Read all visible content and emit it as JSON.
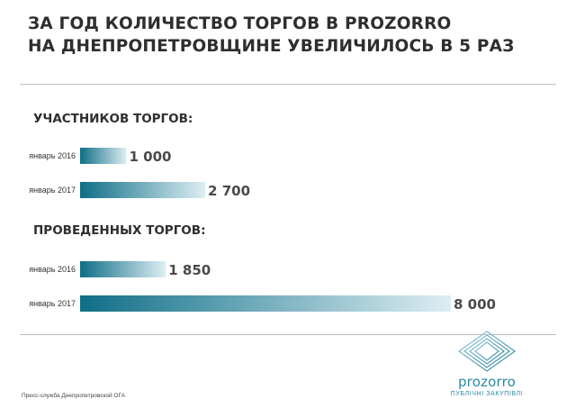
{
  "title_lines": [
    "ЗА ГОД КОЛИЧЕСТВО ТОРГОВ В PROZORRO",
    "НА ДНЕПРОПЕТРОВЩИНЕ УВЕЛИЧИЛОСЬ В 5 РАЗ"
  ],
  "colors": {
    "bar_dark": "#0f6e87",
    "bar_light": "#ddeef3",
    "brand": "#2a8aa6"
  },
  "chart_data": [
    {
      "type": "bar",
      "title": "УЧАСТНИКОВ ТОРГОВ:",
      "categories": [
        "январь 2016",
        "январь 2017"
      ],
      "values": [
        1000,
        2700
      ],
      "value_labels": [
        "1 000",
        "2 700"
      ]
    },
    {
      "type": "bar",
      "title": "ПРОВЕДЕННЫХ ТОРГОВ:",
      "categories": [
        "январь 2016",
        "январь 2017"
      ],
      "values": [
        1850,
        8000
      ],
      "value_labels": [
        "1 850",
        "8 000"
      ]
    }
  ],
  "footer": "Пресс-служба Днепропетровской ОГА",
  "logo": {
    "icon": "prozorro-logo-icon",
    "brand": "prozorro",
    "tagline": "ПУБЛІЧНІ ЗАКУПІВЛІ"
  }
}
